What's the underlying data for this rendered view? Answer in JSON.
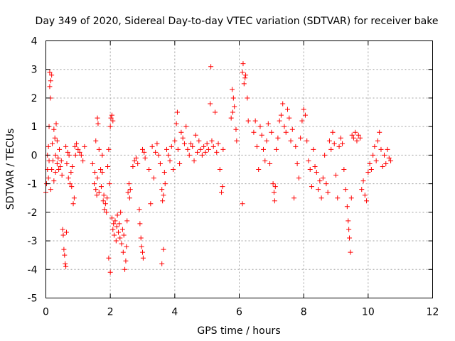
{
  "chart_data": {
    "type": "scatter",
    "title": "Day 349 of 2020, Sidereal Day-to-day VTEC variation (SDTVAR) for receiver bake",
    "xlabel": "GPS time / hours",
    "ylabel": "SDTVAR / TECUs",
    "xlim": [
      0,
      12
    ],
    "ylim": [
      -5,
      4
    ],
    "xticks": [
      "0",
      "2",
      "4",
      "6",
      "8",
      "10",
      "12"
    ],
    "yticks": [
      "4",
      "3",
      "2",
      "1",
      "0",
      "-1",
      "-2",
      "-3",
      "-4",
      "-5"
    ],
    "grid": true,
    "marker": "plus",
    "series": [
      {
        "name": "SDTVAR",
        "color": "#ff0000",
        "points": [
          [
            0.0,
            -1.3
          ],
          [
            0.02,
            -1.0
          ],
          [
            0.05,
            -0.5
          ],
          [
            0.05,
            0.0
          ],
          [
            0.08,
            0.3
          ],
          [
            0.08,
            -0.8
          ],
          [
            0.1,
            1.0
          ],
          [
            0.1,
            -0.2
          ],
          [
            0.12,
            2.9
          ],
          [
            0.12,
            2.4
          ],
          [
            0.14,
            2.0
          ],
          [
            0.15,
            2.6
          ],
          [
            0.15,
            -1.2
          ],
          [
            0.18,
            2.8
          ],
          [
            0.18,
            -0.5
          ],
          [
            0.2,
            0.4
          ],
          [
            0.22,
            -0.2
          ],
          [
            0.25,
            0.9
          ],
          [
            0.25,
            -0.9
          ],
          [
            0.28,
            0.6
          ],
          [
            0.3,
            0.0
          ],
          [
            0.3,
            -0.6
          ],
          [
            0.32,
            1.1
          ],
          [
            0.35,
            0.5
          ],
          [
            0.35,
            -0.3
          ],
          [
            0.38,
            -0.1
          ],
          [
            0.4,
            -0.5
          ],
          [
            0.42,
            0.2
          ],
          [
            0.45,
            -0.4
          ],
          [
            0.48,
            -0.2
          ],
          [
            0.5,
            -0.7
          ],
          [
            0.52,
            -2.6
          ],
          [
            0.54,
            -2.8
          ],
          [
            0.56,
            -3.3
          ],
          [
            0.58,
            -3.5
          ],
          [
            0.6,
            -3.8
          ],
          [
            0.62,
            -3.9
          ],
          [
            0.64,
            -2.7
          ],
          [
            0.62,
            0.3
          ],
          [
            0.65,
            -0.3
          ],
          [
            0.68,
            0.1
          ],
          [
            0.7,
            -0.8
          ],
          [
            0.72,
            0.0
          ],
          [
            0.75,
            -1.0
          ],
          [
            0.78,
            -0.6
          ],
          [
            0.8,
            -1.1
          ],
          [
            0.82,
            -0.4
          ],
          [
            0.85,
            -1.7
          ],
          [
            0.88,
            -1.5
          ],
          [
            0.9,
            0.3
          ],
          [
            0.92,
            0.0
          ],
          [
            0.95,
            0.4
          ],
          [
            1.0,
            0.2
          ],
          [
            1.05,
            0.1
          ],
          [
            1.1,
            0.0
          ],
          [
            1.15,
            -0.2
          ],
          [
            1.2,
            0.3
          ],
          [
            1.45,
            -0.3
          ],
          [
            1.5,
            -1.0
          ],
          [
            1.52,
            -0.6
          ],
          [
            1.55,
            -1.2
          ],
          [
            1.55,
            0.5
          ],
          [
            1.58,
            -1.4
          ],
          [
            1.6,
            -0.8
          ],
          [
            1.6,
            1.3
          ],
          [
            1.62,
            1.1
          ],
          [
            1.65,
            -1.3
          ],
          [
            1.65,
            0.2
          ],
          [
            1.7,
            -0.5
          ],
          [
            1.72,
            -1.1
          ],
          [
            1.75,
            -0.6
          ],
          [
            1.75,
            0.0
          ],
          [
            1.78,
            -1.6
          ],
          [
            1.8,
            -1.4
          ],
          [
            1.82,
            -1.9
          ],
          [
            1.85,
            -1.7
          ],
          [
            1.88,
            -2.0
          ],
          [
            1.9,
            -1.5
          ],
          [
            1.92,
            -0.4
          ],
          [
            1.95,
            0.2
          ],
          [
            1.98,
            -1.0
          ],
          [
            2.0,
            1.0
          ],
          [
            2.02,
            1.3
          ],
          [
            2.05,
            1.4
          ],
          [
            2.08,
            1.2
          ],
          [
            1.95,
            -3.6
          ],
          [
            2.0,
            -4.1
          ],
          [
            2.05,
            -2.2
          ],
          [
            2.08,
            -2.6
          ],
          [
            2.1,
            -2.4
          ],
          [
            2.12,
            -2.8
          ],
          [
            2.15,
            -2.3
          ],
          [
            2.18,
            -3.0
          ],
          [
            2.2,
            -2.5
          ],
          [
            2.22,
            -2.1
          ],
          [
            2.25,
            -2.7
          ],
          [
            2.28,
            -2.4
          ],
          [
            2.3,
            -2.9
          ],
          [
            2.32,
            -2.0
          ],
          [
            2.35,
            -3.1
          ],
          [
            2.38,
            -2.6
          ],
          [
            2.4,
            -3.4
          ],
          [
            2.42,
            -2.8
          ],
          [
            2.45,
            -4.0
          ],
          [
            2.48,
            -3.7
          ],
          [
            2.5,
            -3.2
          ],
          [
            2.52,
            -2.3
          ],
          [
            2.55,
            -1.3
          ],
          [
            2.58,
            -1.0
          ],
          [
            2.6,
            -1.5
          ],
          [
            2.62,
            -1.2
          ],
          [
            2.7,
            -0.4
          ],
          [
            2.75,
            -0.2
          ],
          [
            2.8,
            -0.1
          ],
          [
            2.85,
            -0.3
          ],
          [
            2.9,
            -1.9
          ],
          [
            2.92,
            -2.4
          ],
          [
            2.95,
            -2.9
          ],
          [
            2.97,
            -3.2
          ],
          [
            3.0,
            -3.4
          ],
          [
            3.02,
            -3.6
          ],
          [
            3.05,
            0.1
          ],
          [
            3.08,
            -0.1
          ],
          [
            3.0,
            0.2
          ],
          [
            3.2,
            -0.5
          ],
          [
            3.25,
            -1.7
          ],
          [
            3.3,
            0.3
          ],
          [
            3.35,
            -0.8
          ],
          [
            3.4,
            0.1
          ],
          [
            3.45,
            0.4
          ],
          [
            3.5,
            0.0
          ],
          [
            3.55,
            -0.3
          ],
          [
            3.6,
            -1.2
          ],
          [
            3.62,
            -1.6
          ],
          [
            3.65,
            -1.4
          ],
          [
            3.68,
            -0.6
          ],
          [
            3.6,
            -3.8
          ],
          [
            3.65,
            -3.3
          ],
          [
            3.7,
            -1.0
          ],
          [
            3.75,
            0.2
          ],
          [
            3.8,
            0.0
          ],
          [
            3.85,
            -0.2
          ],
          [
            3.9,
            0.3
          ],
          [
            3.95,
            -0.5
          ],
          [
            4.0,
            0.5
          ],
          [
            4.05,
            1.1
          ],
          [
            4.08,
            1.5
          ],
          [
            4.1,
            0.2
          ],
          [
            4.15,
            -0.3
          ],
          [
            4.2,
            0.8
          ],
          [
            4.25,
            0.6
          ],
          [
            4.3,
            0.4
          ],
          [
            4.35,
            1.0
          ],
          [
            4.4,
            0.2
          ],
          [
            4.45,
            0.0
          ],
          [
            4.5,
            0.4
          ],
          [
            4.55,
            0.3
          ],
          [
            4.6,
            -0.2
          ],
          [
            4.65,
            0.7
          ],
          [
            4.7,
            0.1
          ],
          [
            4.75,
            0.5
          ],
          [
            4.8,
            0.2
          ],
          [
            4.85,
            0.0
          ],
          [
            4.9,
            0.3
          ],
          [
            4.95,
            0.1
          ],
          [
            5.0,
            0.4
          ],
          [
            5.05,
            0.2
          ],
          [
            5.1,
            1.8
          ],
          [
            5.12,
            3.1
          ],
          [
            5.15,
            0.5
          ],
          [
            5.2,
            0.3
          ],
          [
            5.25,
            1.5
          ],
          [
            5.3,
            0.1
          ],
          [
            5.35,
            0.4
          ],
          [
            5.4,
            -0.5
          ],
          [
            5.45,
            -1.3
          ],
          [
            5.48,
            -1.1
          ],
          [
            5.5,
            0.2
          ],
          [
            5.75,
            1.3
          ],
          [
            5.78,
            2.3
          ],
          [
            5.8,
            1.5
          ],
          [
            5.82,
            2.0
          ],
          [
            5.85,
            1.7
          ],
          [
            5.9,
            0.9
          ],
          [
            5.92,
            0.5
          ],
          [
            6.1,
            2.9
          ],
          [
            6.12,
            3.2
          ],
          [
            6.15,
            2.5
          ],
          [
            6.18,
            2.7
          ],
          [
            6.2,
            2.8
          ],
          [
            6.1,
            -1.7
          ],
          [
            6.25,
            2.0
          ],
          [
            6.28,
            1.2
          ],
          [
            6.45,
            0.8
          ],
          [
            6.5,
            1.2
          ],
          [
            6.55,
            0.3
          ],
          [
            6.6,
            -0.5
          ],
          [
            6.65,
            1.0
          ],
          [
            6.7,
            0.7
          ],
          [
            6.75,
            0.2
          ],
          [
            6.8,
            -0.2
          ],
          [
            6.85,
            0.5
          ],
          [
            6.9,
            1.1
          ],
          [
            6.95,
            -0.3
          ],
          [
            7.0,
            0.8
          ],
          [
            7.05,
            -1.0
          ],
          [
            7.08,
            -1.3
          ],
          [
            7.1,
            -1.6
          ],
          [
            7.12,
            -1.1
          ],
          [
            7.15,
            0.2
          ],
          [
            7.2,
            0.6
          ],
          [
            7.25,
            1.2
          ],
          [
            7.3,
            1.4
          ],
          [
            7.35,
            1.8
          ],
          [
            7.4,
            1.0
          ],
          [
            7.45,
            0.8
          ],
          [
            7.5,
            1.6
          ],
          [
            7.55,
            1.3
          ],
          [
            7.6,
            0.5
          ],
          [
            7.65,
            0.9
          ],
          [
            7.7,
            -1.5
          ],
          [
            7.75,
            0.3
          ],
          [
            7.8,
            -0.3
          ],
          [
            7.85,
            -0.8
          ],
          [
            7.9,
            0.6
          ],
          [
            7.95,
            1.2
          ],
          [
            8.0,
            1.6
          ],
          [
            8.05,
            1.4
          ],
          [
            8.1,
            0.5
          ],
          [
            8.15,
            -0.2
          ],
          [
            8.2,
            -0.5
          ],
          [
            8.25,
            -1.1
          ],
          [
            8.3,
            0.2
          ],
          [
            8.35,
            -0.4
          ],
          [
            8.4,
            -0.6
          ],
          [
            8.45,
            -1.2
          ],
          [
            8.5,
            -0.9
          ],
          [
            8.55,
            -1.5
          ],
          [
            8.6,
            -0.8
          ],
          [
            8.65,
            0.0
          ],
          [
            8.7,
            -1.0
          ],
          [
            8.75,
            -1.3
          ],
          [
            8.8,
            0.5
          ],
          [
            8.85,
            0.2
          ],
          [
            8.9,
            0.8
          ],
          [
            8.95,
            0.4
          ],
          [
            9.0,
            -0.7
          ],
          [
            9.05,
            -1.5
          ],
          [
            9.1,
            0.3
          ],
          [
            9.15,
            0.6
          ],
          [
            9.2,
            0.4
          ],
          [
            9.25,
            -0.5
          ],
          [
            9.3,
            -1.2
          ],
          [
            9.35,
            -1.8
          ],
          [
            9.38,
            -2.3
          ],
          [
            9.4,
            -2.6
          ],
          [
            9.42,
            -2.9
          ],
          [
            9.45,
            -3.4
          ],
          [
            9.48,
            -1.5
          ],
          [
            9.5,
            0.7
          ],
          [
            9.55,
            0.6
          ],
          [
            9.6,
            0.8
          ],
          [
            9.65,
            0.5
          ],
          [
            9.7,
            0.7
          ],
          [
            9.75,
            0.6
          ],
          [
            9.8,
            -1.2
          ],
          [
            9.85,
            -0.9
          ],
          [
            9.9,
            -1.4
          ],
          [
            9.95,
            -1.6
          ],
          [
            10.0,
            -0.6
          ],
          [
            10.05,
            -0.3
          ],
          [
            10.1,
            -0.5
          ],
          [
            10.15,
            0.0
          ],
          [
            10.2,
            0.3
          ],
          [
            10.25,
            -0.2
          ],
          [
            10.3,
            0.5
          ],
          [
            10.35,
            0.8
          ],
          [
            10.4,
            0.2
          ],
          [
            10.45,
            -0.4
          ],
          [
            10.5,
            0.0
          ],
          [
            10.55,
            -0.3
          ],
          [
            10.6,
            0.2
          ],
          [
            10.65,
            -0.1
          ],
          [
            10.7,
            -0.2
          ]
        ]
      }
    ]
  }
}
